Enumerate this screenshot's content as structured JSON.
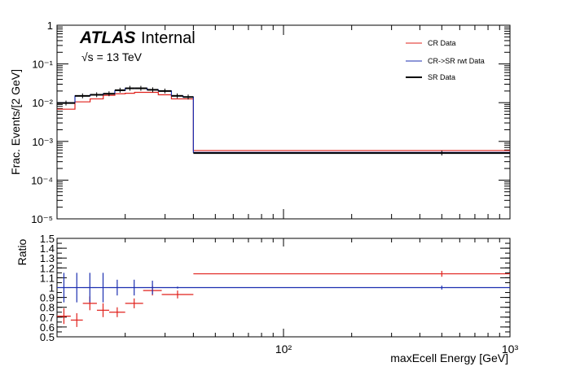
{
  "chart_data": [
    {
      "type": "line",
      "panel": "main",
      "title": "",
      "atlas_label": "ATLAS",
      "atlas_suffix": "Internal",
      "energy_label": "√s = 13 TeV",
      "ylabel": "Frac. Events/[2 GeV]",
      "xlabel": "",
      "xscale": "log",
      "yscale": "log",
      "xlim": [
        10,
        1000
      ],
      "ylim": [
        1e-05,
        1
      ],
      "yticks": [
        {
          "value": 1e-05,
          "label": "10⁻⁵"
        },
        {
          "value": 0.0001,
          "label": "10⁻⁴"
        },
        {
          "value": 0.001,
          "label": "10⁻³"
        },
        {
          "value": 0.01,
          "label": "10⁻²"
        },
        {
          "value": 0.1,
          "label": "10⁻¹"
        },
        {
          "value": 1,
          "label": "1"
        }
      ],
      "legend_position": "top-right",
      "bin_edges": [
        10,
        12,
        14,
        16,
        18,
        20,
        22,
        25,
        28,
        32,
        36,
        40,
        1000
      ],
      "series": [
        {
          "name": "CR Data",
          "color": "#e0201b",
          "style": "hist",
          "values": [
            0.0068,
            0.0105,
            0.0125,
            0.0155,
            0.017,
            0.0175,
            0.0185,
            0.0185,
            0.016,
            0.0125,
            0.0125,
            0.00058
          ]
        },
        {
          "name": "CR->SR rwt Data",
          "color": "#1c2fb0",
          "style": "hist",
          "values": [
            0.01,
            0.015,
            0.016,
            0.017,
            0.0205,
            0.0235,
            0.0235,
            0.0215,
            0.02,
            0.015,
            0.014,
            0.00052
          ]
        },
        {
          "name": "SR Data",
          "color": "#000000",
          "style": "points",
          "values": [
            0.0098,
            0.015,
            0.016,
            0.017,
            0.021,
            0.0235,
            0.0235,
            0.0215,
            0.02,
            0.015,
            0.014,
            0.0005
          ]
        }
      ]
    },
    {
      "type": "scatter",
      "panel": "ratio",
      "title": "",
      "ylabel": "Ratio",
      "xlabel": "maxEcell Energy [GeV]",
      "xscale": "log",
      "xlim": [
        10,
        1000
      ],
      "ylim": [
        0.5,
        1.5
      ],
      "yticks": [
        {
          "value": 0.5,
          "label": "0.5"
        },
        {
          "value": 0.6,
          "label": "0.6"
        },
        {
          "value": 0.7,
          "label": "0.7"
        },
        {
          "value": 0.8,
          "label": "0.8"
        },
        {
          "value": 0.9,
          "label": "0.9"
        },
        {
          "value": 1.0,
          "label": "1"
        },
        {
          "value": 1.1,
          "label": "1.1"
        },
        {
          "value": 1.2,
          "label": "1.2"
        },
        {
          "value": 1.3,
          "label": "1.3"
        },
        {
          "value": 1.4,
          "label": "1.4"
        },
        {
          "value": 1.5,
          "label": "1.5"
        }
      ],
      "xticks": [
        {
          "value": 100,
          "label": "10²"
        },
        {
          "value": 1000,
          "label": "10³"
        }
      ],
      "reference_line": 1.0,
      "series": [
        {
          "name": "CR Data",
          "color": "#e0201b",
          "points": [
            {
              "x0": 10,
              "x1": 11.5,
              "y": 0.71,
              "err": 0.08
            },
            {
              "x0": 11.5,
              "x1": 13.0,
              "y": 0.67,
              "err": 0.07
            },
            {
              "x0": 13.0,
              "x1": 15.0,
              "y": 0.84,
              "err": 0.07
            },
            {
              "x0": 15.0,
              "x1": 17.0,
              "y": 0.77,
              "err": 0.07
            },
            {
              "x0": 17.0,
              "x1": 20.0,
              "y": 0.75,
              "err": 0.05
            },
            {
              "x0": 20.0,
              "x1": 24.0,
              "y": 0.84,
              "err": 0.05
            },
            {
              "x0": 24.0,
              "x1": 29.0,
              "y": 0.97,
              "err": 0.05
            },
            {
              "x0": 29.0,
              "x1": 40.0,
              "y": 0.93,
              "err": 0.04
            },
            {
              "x0": 40.0,
              "x1": 1000,
              "y": 1.14,
              "xc": 500,
              "err": 0.03
            }
          ]
        },
        {
          "name": "CR->SR rwt Data",
          "color": "#1c2fb0",
          "points": [
            {
              "x0": 10,
              "x1": 11.5,
              "y": 1.0,
              "err": 0.15
            },
            {
              "x0": 11.5,
              "x1": 13.0,
              "y": 1.0,
              "err": 0.15
            },
            {
              "x0": 13.0,
              "x1": 15.0,
              "y": 1.0,
              "err": 0.15
            },
            {
              "x0": 15.0,
              "x1": 17.0,
              "y": 1.0,
              "err": 0.15
            },
            {
              "x0": 17.0,
              "x1": 20.0,
              "y": 1.0,
              "err": 0.08
            },
            {
              "x0": 20.0,
              "x1": 24.0,
              "y": 1.0,
              "err": 0.08
            },
            {
              "x0": 24.0,
              "x1": 29.0,
              "y": 1.0,
              "err": 0.07
            },
            {
              "x0": 29.0,
              "x1": 40.0,
              "y": 1.0,
              "err": 0.01
            },
            {
              "x0": 40.0,
              "x1": 1000,
              "y": 1.0,
              "xc": 500,
              "err": 0.02
            }
          ]
        }
      ]
    }
  ]
}
